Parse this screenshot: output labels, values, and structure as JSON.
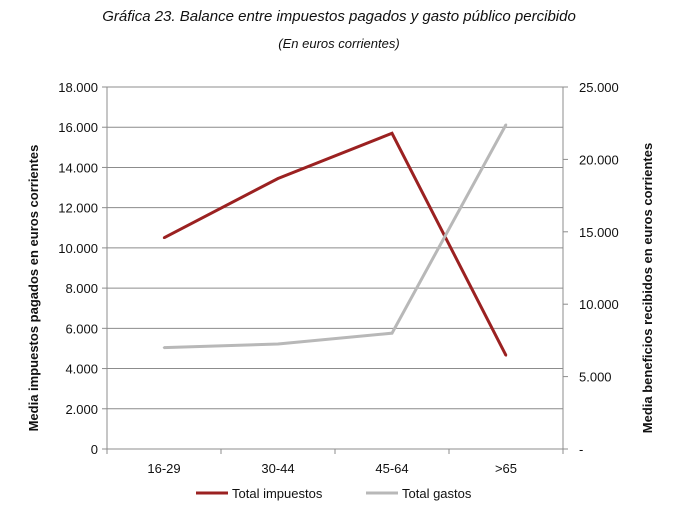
{
  "chart_data": {
    "type": "line",
    "title": "Gráfica 23. Balance entre impuestos pagados y gasto público percibido",
    "subtitle": "(En euros corrientes)",
    "categories": [
      "16-29",
      "30-44",
      "45-64",
      ">65"
    ],
    "ylabel_left": "Media impuestos pagados en euros corrientes",
    "ylabel_right": "Media beneficios recibidos en  euros corrientes",
    "ylim_left": [
      0,
      18000
    ],
    "ylim_right": [
      0,
      25000
    ],
    "yticks_left": [
      "0",
      "2.000",
      "4.000",
      "6.000",
      "8.000",
      "10.000",
      "12.000",
      "14.000",
      "16.000",
      "18.000"
    ],
    "yticks_right": [
      "-",
      "5.000",
      "10.000",
      "15.000",
      "20.000",
      "25.000"
    ],
    "grid": true,
    "legend_position": "bottom",
    "series": [
      {
        "name": "Total impuestos",
        "axis": "left",
        "color": "#9b2121",
        "values": [
          10500,
          13450,
          15700,
          4650
        ]
      },
      {
        "name": "Total gastos",
        "axis": "right",
        "color": "#b8b8b8",
        "values": [
          7000,
          7250,
          8000,
          22400
        ]
      }
    ]
  }
}
